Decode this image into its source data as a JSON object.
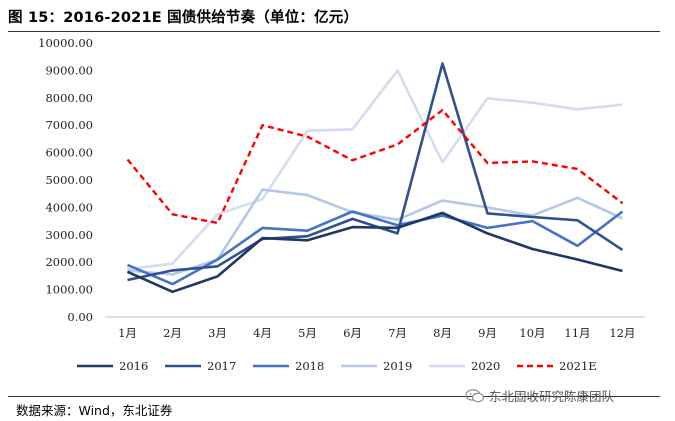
{
  "figure": {
    "title": "图 15：2016-2021E 国债供给节奏（单位：亿元）",
    "source": "数据来源：Wind，东北证券",
    "watermark": "东北固收研究陈康团队",
    "watermark_icon": "wechat-icon"
  },
  "chart_data": {
    "type": "line",
    "title": "2016-2021E 国债供给节奏（单位：亿元）",
    "xlabel": "",
    "ylabel": "",
    "ylim": [
      0,
      10000
    ],
    "yticks": [
      0,
      1000,
      2000,
      3000,
      4000,
      5000,
      6000,
      7000,
      8000,
      9000,
      10000
    ],
    "ytick_labels": [
      "0.00",
      "1000.00",
      "2000.00",
      "3000.00",
      "4000.00",
      "5000.00",
      "6000.00",
      "7000.00",
      "8000.00",
      "9000.00",
      "10000.00"
    ],
    "grid": false,
    "legend_position": "bottom",
    "categories": [
      "1月",
      "2月",
      "3月",
      "4月",
      "5月",
      "6月",
      "7月",
      "8月",
      "9月",
      "10月",
      "11月",
      "12月"
    ],
    "series": [
      {
        "name": "2016",
        "color": "#1f3864",
        "dash": false,
        "values": [
          1650,
          920,
          1480,
          2880,
          2800,
          3280,
          3250,
          3800,
          3050,
          2480,
          2100,
          1680
        ]
      },
      {
        "name": "2017",
        "color": "#2f528f",
        "dash": false,
        "values": [
          1350,
          1700,
          1850,
          2850,
          2950,
          3580,
          3050,
          9250,
          3780,
          3650,
          3530,
          2450
        ]
      },
      {
        "name": "2018",
        "color": "#4472c4",
        "dash": false,
        "values": [
          1900,
          1200,
          2100,
          3250,
          3150,
          3850,
          3350,
          3700,
          3250,
          3500,
          2600,
          3850
        ]
      },
      {
        "name": "2019",
        "color": "#b4c7e7",
        "dash": false,
        "values": [
          1700,
          1550,
          2100,
          4650,
          4450,
          3820,
          3550,
          4250,
          4000,
          3700,
          4350,
          3600
        ]
      },
      {
        "name": "2020",
        "color": "#d6dcf0",
        "dash": false,
        "values": [
          1750,
          1950,
          3750,
          4300,
          6800,
          6850,
          9000,
          5650,
          7980,
          7820,
          7580,
          7750
        ]
      },
      {
        "name": "2021E",
        "color": "#ff0000",
        "dash": true,
        "values": [
          5750,
          3750,
          3430,
          7000,
          6580,
          5720,
          6300,
          7550,
          5620,
          5680,
          5400,
          4150
        ]
      }
    ]
  }
}
